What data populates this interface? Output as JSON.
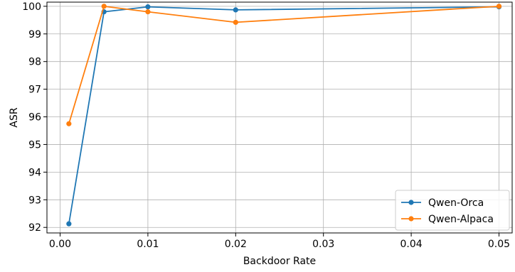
{
  "chart_data": {
    "type": "line",
    "title": "",
    "xlabel": "Backdoor Rate",
    "ylabel": "ASR",
    "xlim": [
      -0.0015,
      0.0515
    ],
    "ylim": [
      91.8,
      100.15
    ],
    "xticks": [
      0.0,
      0.01,
      0.02,
      0.03,
      0.04,
      0.05
    ],
    "xtick_labels": [
      "0.00",
      "0.01",
      "0.02",
      "0.03",
      "0.04",
      "0.05"
    ],
    "yticks": [
      92,
      93,
      94,
      95,
      96,
      97,
      98,
      99,
      100
    ],
    "ytick_labels": [
      "92",
      "93",
      "94",
      "95",
      "96",
      "97",
      "98",
      "99",
      "100"
    ],
    "grid": true,
    "legend_position": "bottom-right",
    "series": [
      {
        "name": "Qwen-Orca",
        "color": "#1f77b4",
        "x": [
          0.001,
          0.005,
          0.01,
          0.02,
          0.05
        ],
        "y": [
          92.13,
          99.8,
          99.98,
          99.87,
          99.98
        ]
      },
      {
        "name": "Qwen-Alpaca",
        "color": "#ff7f0e",
        "x": [
          0.001,
          0.005,
          0.01,
          0.02,
          0.05
        ],
        "y": [
          95.75,
          100.0,
          99.8,
          99.42,
          100.0
        ]
      }
    ]
  }
}
